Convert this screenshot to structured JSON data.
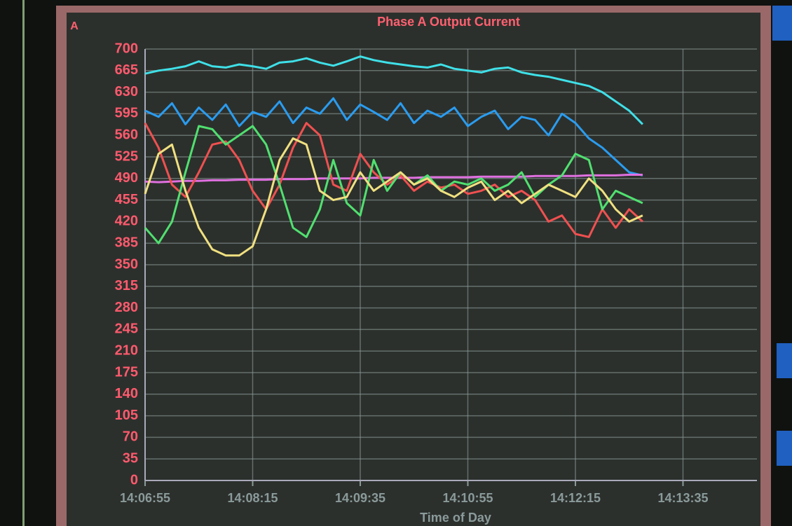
{
  "chart_data": {
    "type": "line",
    "title": "Phase A Output Current",
    "y_label": "A",
    "x_label": "Time of Day",
    "x": [
      50815,
      50825,
      50835,
      50845,
      50855,
      50865,
      50875,
      50885,
      50895,
      50905,
      50915,
      50925,
      50935,
      50945,
      50955,
      50965,
      50975,
      50985,
      50995,
      51005,
      51015,
      51025,
      51035,
      51045,
      51055,
      51065,
      51075,
      51085,
      51095,
      51105,
      51115,
      51125,
      51135,
      51145,
      51155,
      51165,
      51175,
      51185
    ],
    "series": [
      {
        "color": "#3fe0e8",
        "values": [
          660,
          665,
          668,
          672,
          680,
          672,
          670,
          675,
          672,
          668,
          678,
          680,
          685,
          678,
          673,
          680,
          688,
          682,
          678,
          675,
          672,
          670,
          675,
          668,
          665,
          662,
          668,
          670,
          662,
          658,
          655,
          650,
          645,
          640,
          630,
          615,
          600,
          578
        ]
      },
      {
        "color": "#2a9cf0",
        "values": [
          600,
          590,
          612,
          578,
          605,
          585,
          610,
          575,
          598,
          590,
          615,
          580,
          605,
          595,
          620,
          585,
          610,
          598,
          585,
          612,
          580,
          600,
          590,
          605,
          575,
          590,
          600,
          570,
          590,
          585,
          560,
          595,
          580,
          555,
          540,
          520,
          500,
          495
        ]
      },
      {
        "color": "#e070e0",
        "values": [
          485,
          484,
          485,
          486,
          486,
          487,
          487,
          488,
          488,
          488,
          489,
          489,
          489,
          490,
          490,
          490,
          490,
          491,
          491,
          491,
          491,
          492,
          492,
          492,
          492,
          493,
          493,
          493,
          493,
          494,
          494,
          494,
          494,
          495,
          495,
          495,
          496,
          496
        ]
      },
      {
        "color": "#f05050",
        "values": [
          580,
          540,
          480,
          460,
          500,
          545,
          550,
          520,
          470,
          440,
          480,
          540,
          580,
          560,
          480,
          470,
          530,
          500,
          480,
          495,
          470,
          485,
          475,
          480,
          465,
          470,
          480,
          460,
          470,
          455,
          420,
          430,
          400,
          395,
          440,
          410,
          440,
          420
        ]
      },
      {
        "color": "#50e070",
        "values": [
          410,
          385,
          420,
          500,
          575,
          570,
          545,
          560,
          575,
          545,
          480,
          410,
          395,
          440,
          520,
          450,
          430,
          520,
          470,
          500,
          480,
          495,
          470,
          485,
          480,
          490,
          470,
          480,
          500,
          460,
          480,
          495,
          530,
          520,
          440,
          470,
          460,
          450
        ]
      },
      {
        "color": "#f0e080",
        "values": [
          465,
          530,
          545,
          470,
          410,
          375,
          365,
          365,
          380,
          440,
          520,
          555,
          545,
          470,
          455,
          460,
          500,
          470,
          485,
          500,
          480,
          490,
          470,
          460,
          475,
          485,
          455,
          470,
          450,
          465,
          480,
          470,
          460,
          490,
          470,
          440,
          420,
          430
        ]
      }
    ],
    "xlim": [
      50815,
      51270
    ],
    "xticks": [
      {
        "value": 50815,
        "label": "14:06:55"
      },
      {
        "value": 50895,
        "label": "14:08:15"
      },
      {
        "value": 50975,
        "label": "14:09:35"
      },
      {
        "value": 51055,
        "label": "14:10:55"
      },
      {
        "value": 51135,
        "label": "14:12:15"
      },
      {
        "value": 51215,
        "label": "14:13:35"
      }
    ],
    "ylim": [
      0,
      700
    ],
    "yticks": [
      0,
      35,
      70,
      105,
      140,
      175,
      210,
      245,
      280,
      315,
      350,
      385,
      420,
      455,
      490,
      525,
      560,
      595,
      630,
      665,
      700
    ],
    "grid": true
  }
}
